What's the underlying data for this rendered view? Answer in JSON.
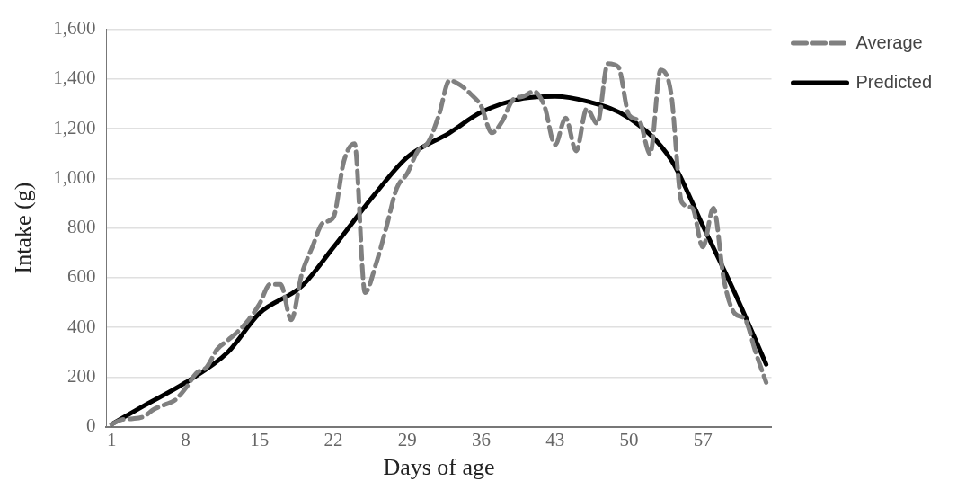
{
  "chart_data": {
    "type": "line",
    "xlabel": "Days of age",
    "ylabel": "Intake (g)",
    "xlim": [
      0.5,
      63.5
    ],
    "xticks": [
      1,
      8,
      15,
      22,
      29,
      36,
      43,
      50,
      57
    ],
    "ylim": [
      0,
      1600
    ],
    "yticks": [
      0,
      200,
      400,
      600,
      800,
      {
        "value": 1000,
        "label": "1,000"
      },
      {
        "value": 1200,
        "label": "1,200"
      },
      {
        "value": 1400,
        "label": "1,400"
      },
      {
        "value": 1600,
        "label": "1,600"
      }
    ],
    "grid": "y",
    "legend": "top right",
    "marker": "none",
    "series": [
      {
        "name": "Average",
        "color": "#808080",
        "line_style": "dashed",
        "x": [
          1,
          2,
          3,
          4,
          5,
          6,
          7,
          8,
          9,
          10,
          11,
          12,
          13,
          14,
          15,
          16,
          17,
          18,
          19,
          20,
          21,
          22,
          23,
          24,
          25,
          26,
          27,
          28,
          29,
          30,
          31,
          32,
          33,
          34,
          35,
          36,
          37,
          38,
          39,
          40,
          41,
          42,
          43,
          44,
          45,
          46,
          47,
          48,
          49,
          50,
          51,
          52,
          53,
          54,
          55,
          56,
          57,
          58,
          59,
          60,
          61,
          62,
          63
        ],
        "values": [
          10,
          29,
          32,
          40,
          70,
          88,
          107,
          155,
          215,
          240,
          312,
          348,
          385,
          432,
          494,
          573,
          573,
          430,
          614,
          723,
          820,
          843,
          1070,
          1140,
          540,
          650,
          800,
          960,
          1020,
          1110,
          1146,
          1255,
          1394,
          1376,
          1340,
          1290,
          1183,
          1230,
          1316,
          1330,
          1350,
          1290,
          1135,
          1243,
          1110,
          1280,
          1220,
          1462,
          1448,
          1255,
          1230,
          1098,
          1437,
          1340,
          904,
          880,
          723,
          880,
          590,
          457,
          432,
          300,
          178
        ]
      },
      {
        "name": "Predicted",
        "color": "#000000",
        "line_style": "solid",
        "x": [
          1,
          4,
          8,
          12,
          15,
          19,
          22,
          26,
          29,
          33,
          36,
          40,
          43,
          46,
          50,
          54,
          57,
          60,
          63
        ],
        "values": [
          10,
          83,
          178,
          300,
          457,
          566,
          722,
          940,
          1085,
          1183,
          1266,
          1322,
          1330,
          1310,
          1243,
          1074,
          809,
          541,
          251
        ]
      }
    ]
  }
}
